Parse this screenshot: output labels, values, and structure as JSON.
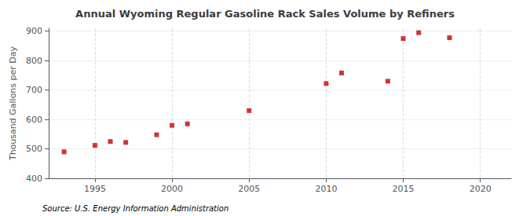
{
  "chart_data": {
    "type": "scatter",
    "title": "Annual Wyoming Regular Gasoline Rack Sales Volume by Refiners",
    "ylabel": "Thousand Gallons per Day",
    "annotation": "Source: U.S. Energy Information Administration",
    "x": [
      1993,
      1995,
      1996,
      1997,
      1999,
      2000,
      2001,
      2005,
      2010,
      2011,
      2014,
      2015,
      2016,
      2018
    ],
    "values": [
      490,
      512,
      525,
      522,
      548,
      580,
      585,
      630,
      722,
      758,
      730,
      875,
      895,
      878
    ],
    "color": "#cc0000",
    "marker": "square",
    "xlim": [
      1992,
      2022
    ],
    "xticks": [
      1995,
      2000,
      2005,
      2010,
      2015,
      2020
    ],
    "ylim": [
      400,
      910
    ],
    "yticks": [
      400,
      500,
      600,
      700,
      800,
      900
    ],
    "grid": true
  }
}
